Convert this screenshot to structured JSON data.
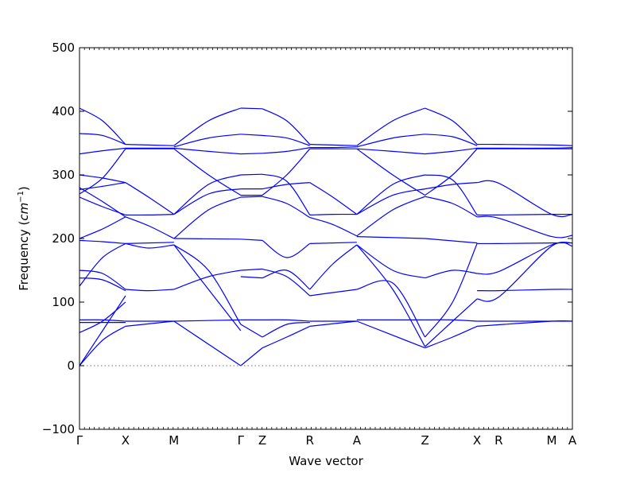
{
  "chart_data": {
    "type": "line",
    "title": "",
    "xlabel": "Wave vector",
    "ylabel": "Frequency",
    "ylabel_unit": "cm",
    "ylabel_unit_exponent": "−1",
    "ylim": [
      -100,
      500
    ],
    "yticks": [
      -100,
      0,
      100,
      200,
      300,
      400,
      500
    ],
    "ytick_labels": [
      "−100",
      "0",
      "100",
      "200",
      "300",
      "400",
      "500"
    ],
    "xlim": [
      0,
      10.7
    ],
    "grid": false,
    "legend": "none",
    "line_color": "#0000ff",
    "zero_line": {
      "y": 0,
      "style": "dotted",
      "color": "#6666aa"
    },
    "high_symmetry_points": [
      {
        "label": "Γ",
        "x": 0.0
      },
      {
        "label": "X",
        "x": 1.0
      },
      {
        "label": "M",
        "x": 2.05
      },
      {
        "label": "Γ",
        "x": 3.5
      },
      {
        "label": "Z",
        "x": 3.97
      },
      {
        "label": "R",
        "x": 5.0
      },
      {
        "label": "A",
        "x": 6.02
      },
      {
        "label": "Z",
        "x": 7.5
      },
      {
        "label": "X",
        "x": 8.63
      },
      {
        "label": "R",
        "x": 9.1
      },
      {
        "label": "M",
        "x": 10.25
      },
      {
        "label": "A",
        "x": 10.7
      }
    ],
    "series": [
      {
        "x": [
          0,
          0.5,
          1.0
        ],
        "y": [
          405,
          385,
          348
        ]
      },
      {
        "x": [
          0,
          0.5,
          1.0
        ],
        "y": [
          365,
          362,
          348
        ]
      },
      {
        "x": [
          0,
          0.5,
          1.0
        ],
        "y": [
          333,
          338,
          342
        ]
      },
      {
        "x": [
          1.0,
          1.5,
          2.05
        ],
        "y": [
          348,
          347,
          346
        ]
      },
      {
        "x": [
          1.0,
          1.5,
          2.05
        ],
        "y": [
          342,
          342,
          342
        ]
      },
      {
        "x": [
          1.0,
          1.5,
          2.05
        ],
        "y": [
          341,
          341,
          341
        ]
      },
      {
        "x": [
          2.05,
          2.8,
          3.5
        ],
        "y": [
          346,
          385,
          405
        ]
      },
      {
        "x": [
          2.05,
          2.8,
          3.5
        ],
        "y": [
          344,
          358,
          364
        ]
      },
      {
        "x": [
          2.05,
          2.8,
          3.5
        ],
        "y": [
          342,
          337,
          333
        ]
      },
      {
        "x": [
          3.5,
          3.97
        ],
        "y": [
          405,
          404
        ]
      },
      {
        "x": [
          3.5,
          3.97
        ],
        "y": [
          364,
          362
        ]
      },
      {
        "x": [
          3.5,
          3.97
        ],
        "y": [
          333,
          334
        ]
      },
      {
        "x": [
          3.97,
          4.5,
          5.0
        ],
        "y": [
          404,
          385,
          348
        ]
      },
      {
        "x": [
          3.97,
          4.5,
          5.0
        ],
        "y": [
          362,
          358,
          346
        ]
      },
      {
        "x": [
          3.97,
          4.5,
          5.0
        ],
        "y": [
          334,
          337,
          343
        ]
      },
      {
        "x": [
          5.0,
          5.5,
          6.02
        ],
        "y": [
          348,
          347,
          346
        ]
      },
      {
        "x": [
          5.0,
          5.5,
          6.02
        ],
        "y": [
          343,
          343,
          344
        ]
      },
      {
        "x": [
          5.0,
          5.5,
          6.02
        ],
        "y": [
          341,
          341,
          341
        ]
      },
      {
        "x": [
          6.02,
          6.8,
          7.5
        ],
        "y": [
          346,
          385,
          405
        ]
      },
      {
        "x": [
          6.02,
          6.8,
          7.5
        ],
        "y": [
          344,
          358,
          364
        ]
      },
      {
        "x": [
          6.02,
          6.8,
          7.5
        ],
        "y": [
          341,
          337,
          333
        ]
      },
      {
        "x": [
          7.5,
          8.1,
          8.63
        ],
        "y": [
          405,
          385,
          348
        ]
      },
      {
        "x": [
          7.5,
          8.1,
          8.63
        ],
        "y": [
          364,
          360,
          346
        ]
      },
      {
        "x": [
          7.5,
          8.1,
          8.63
        ],
        "y": [
          333,
          337,
          342
        ]
      },
      {
        "x": [
          8.63,
          9.1,
          10.25,
          10.7
        ],
        "y": [
          348,
          348,
          347,
          346
        ]
      },
      {
        "x": [
          8.63,
          9.1,
          10.25,
          10.7
        ],
        "y": [
          342,
          342,
          342,
          343
        ]
      },
      {
        "x": [
          8.63,
          9.1,
          10.25,
          10.7
        ],
        "y": [
          341,
          341,
          341,
          341
        ]
      },
      {
        "x": [
          0,
          0.5,
          1.0
        ],
        "y": [
          300,
          295,
          288
        ]
      },
      {
        "x": [
          0,
          0.5,
          1.0
        ],
        "y": [
          277,
          282,
          288
        ]
      },
      {
        "x": [
          0,
          0.5,
          1.0
        ],
        "y": [
          270,
          295,
          341
        ]
      },
      {
        "x": [
          0,
          0.5,
          1.0
        ],
        "y": [
          265,
          250,
          237
        ]
      },
      {
        "x": [
          0,
          0.5,
          1.0
        ],
        "y": [
          280,
          258,
          234
        ]
      },
      {
        "x": [
          1.0,
          1.5,
          2.05
        ],
        "y": [
          288,
          265,
          238
        ]
      },
      {
        "x": [
          1.0,
          1.5,
          2.05
        ],
        "y": [
          237,
          237,
          238
        ]
      },
      {
        "x": [
          1.0,
          1.5,
          2.05
        ],
        "y": [
          234,
          220,
          200
        ]
      },
      {
        "x": [
          2.05,
          2.8,
          3.5
        ],
        "y": [
          238,
          285,
          300
        ]
      },
      {
        "x": [
          2.05,
          2.8,
          3.5
        ],
        "y": [
          238,
          270,
          278
        ]
      },
      {
        "x": [
          2.05,
          2.8,
          3.5
        ],
        "y": [
          200,
          245,
          265
        ]
      },
      {
        "x": [
          2.05,
          2.8,
          3.5
        ],
        "y": [
          341,
          300,
          268
        ]
      },
      {
        "x": [
          3.5,
          3.97
        ],
        "y": [
          300,
          301
        ]
      },
      {
        "x": [
          3.5,
          3.97
        ],
        "y": [
          278,
          278
        ]
      },
      {
        "x": [
          3.5,
          3.97
        ],
        "y": [
          268,
          268
        ]
      },
      {
        "x": [
          3.5,
          3.97
        ],
        "y": [
          265,
          266
        ]
      },
      {
        "x": [
          3.97,
          4.5,
          5.0
        ],
        "y": [
          301,
          290,
          237
        ]
      },
      {
        "x": [
          3.97,
          4.5,
          5.0
        ],
        "y": [
          278,
          285,
          288
        ]
      },
      {
        "x": [
          3.97,
          4.5,
          5.0
        ],
        "y": [
          268,
          300,
          341
        ]
      },
      {
        "x": [
          3.97,
          4.5,
          5.0
        ],
        "y": [
          266,
          255,
          233
        ]
      },
      {
        "x": [
          5.0,
          5.5,
          6.02
        ],
        "y": [
          288,
          265,
          238
        ]
      },
      {
        "x": [
          5.0,
          5.5,
          6.02
        ],
        "y": [
          237,
          238,
          238
        ]
      },
      {
        "x": [
          5.0,
          5.5,
          6.02
        ],
        "y": [
          233,
          222,
          204
        ]
      },
      {
        "x": [
          6.02,
          6.8,
          7.5
        ],
        "y": [
          238,
          285,
          300
        ]
      },
      {
        "x": [
          6.02,
          6.8,
          7.5
        ],
        "y": [
          238,
          268,
          278
        ]
      },
      {
        "x": [
          6.02,
          6.8,
          7.5
        ],
        "y": [
          204,
          245,
          266
        ]
      },
      {
        "x": [
          6.02,
          6.8,
          7.5
        ],
        "y": [
          341,
          300,
          268
        ]
      },
      {
        "x": [
          7.5,
          8.1,
          8.63
        ],
        "y": [
          300,
          292,
          237
        ]
      },
      {
        "x": [
          7.5,
          8.1,
          8.63
        ],
        "y": [
          278,
          285,
          288
        ]
      },
      {
        "x": [
          7.5,
          8.1,
          8.63
        ],
        "y": [
          268,
          300,
          341
        ]
      },
      {
        "x": [
          7.5,
          8.1,
          8.63
        ],
        "y": [
          266,
          255,
          234
        ]
      },
      {
        "x": [
          8.63,
          9.1,
          10.25,
          10.7
        ],
        "y": [
          288,
          287,
          238,
          238
        ]
      },
      {
        "x": [
          8.63,
          9.1,
          10.25,
          10.7
        ],
        "y": [
          237,
          237,
          238,
          238
        ]
      },
      {
        "x": [
          8.63,
          9.1,
          10.25,
          10.7
        ],
        "y": [
          234,
          232,
          203,
          205
        ]
      },
      {
        "x": [
          0,
          0.5,
          1.0
        ],
        "y": [
          200,
          215,
          234
        ]
      },
      {
        "x": [
          0,
          0.5,
          1.0
        ],
        "y": [
          197,
          195,
          192
        ]
      },
      {
        "x": [
          1.0,
          2.05
        ],
        "y": [
          192,
          194
        ]
      },
      {
        "x": [
          2.05,
          3.5
        ],
        "y": [
          200,
          199
        ]
      },
      {
        "x": [
          3.5,
          3.97
        ],
        "y": [
          199,
          197
        ]
      },
      {
        "x": [
          3.97,
          4.5,
          5.0
        ],
        "y": [
          197,
          170,
          192
        ]
      },
      {
        "x": [
          5.0,
          6.02
        ],
        "y": [
          192,
          194
        ]
      },
      {
        "x": [
          6.02,
          7.5
        ],
        "y": [
          203,
          200
        ]
      },
      {
        "x": [
          7.5,
          8.63
        ],
        "y": [
          200,
          193
        ]
      },
      {
        "x": [
          8.63,
          9.1,
          10.25,
          10.7
        ],
        "y": [
          192,
          192,
          193,
          193
        ]
      },
      {
        "x": [
          0,
          0.5,
          1.0
        ],
        "y": [
          150,
          145,
          120
        ]
      },
      {
        "x": [
          0,
          0.5,
          1.0
        ],
        "y": [
          138,
          135,
          118
        ]
      },
      {
        "x": [
          0,
          0.5,
          1.0
        ],
        "y": [
          125,
          170,
          192
        ]
      },
      {
        "x": [
          1.0,
          1.5,
          2.05
        ],
        "y": [
          120,
          118,
          120
        ]
      },
      {
        "x": [
          1.0,
          1.5,
          2.05
        ],
        "y": [
          192,
          185,
          190
        ]
      },
      {
        "x": [
          2.05,
          2.8,
          3.5
        ],
        "y": [
          190,
          150,
          65
        ]
      },
      {
        "x": [
          2.05,
          2.8,
          3.5
        ],
        "y": [
          120,
          140,
          150
        ]
      },
      {
        "x": [
          2.05,
          2.8,
          3.5
        ],
        "y": [
          190,
          120,
          55
        ]
      },
      {
        "x": [
          3.5,
          3.97
        ],
        "y": [
          150,
          152
        ]
      },
      {
        "x": [
          3.5,
          3.97
        ],
        "y": [
          140,
          138
        ]
      },
      {
        "x": [
          3.97,
          4.5,
          5.0
        ],
        "y": [
          152,
          140,
          110
        ]
      },
      {
        "x": [
          3.97,
          4.5,
          5.0
        ],
        "y": [
          138,
          150,
          120
        ]
      },
      {
        "x": [
          5.0,
          5.5,
          6.02
        ],
        "y": [
          110,
          115,
          120
        ]
      },
      {
        "x": [
          5.0,
          5.5,
          6.02
        ],
        "y": [
          120,
          160,
          190
        ]
      },
      {
        "x": [
          6.02,
          6.8,
          7.5
        ],
        "y": [
          190,
          150,
          138
        ]
      },
      {
        "x": [
          6.02,
          6.8,
          7.5
        ],
        "y": [
          120,
          130,
          45
        ]
      },
      {
        "x": [
          6.02,
          6.8,
          7.5
        ],
        "y": [
          190,
          120,
          30
        ]
      },
      {
        "x": [
          7.5,
          8.1,
          8.63
        ],
        "y": [
          138,
          150,
          145
        ]
      },
      {
        "x": [
          7.5,
          8.1,
          8.63
        ],
        "y": [
          45,
          100,
          192
        ]
      },
      {
        "x": [
          7.5,
          8.1,
          8.63
        ],
        "y": [
          30,
          70,
          105
        ]
      },
      {
        "x": [
          8.63,
          9.1,
          10.25,
          10.7
        ],
        "y": [
          145,
          148,
          190,
          193
        ]
      },
      {
        "x": [
          8.63,
          9.1,
          10.25,
          10.7
        ],
        "y": [
          105,
          108,
          188,
          188
        ]
      },
      {
        "x": [
          8.63,
          9.1,
          10.25,
          10.7
        ],
        "y": [
          118,
          118,
          120,
          120
        ]
      },
      {
        "x": [
          0,
          0.5,
          1.0
        ],
        "y": [
          72,
          72,
          70
        ]
      },
      {
        "x": [
          0,
          0.5,
          1.0
        ],
        "y": [
          68,
          68,
          68
        ]
      },
      {
        "x": [
          0,
          0.5,
          1.0
        ],
        "y": [
          52,
          70,
          100
        ]
      },
      {
        "x": [
          0,
          0.5,
          1.0
        ],
        "y": [
          0,
          40,
          62
        ]
      },
      {
        "x": [
          0,
          0.5,
          1.0
        ],
        "y": [
          0,
          55,
          110
        ]
      },
      {
        "x": [
          1.0,
          2.05
        ],
        "y": [
          70,
          70
        ]
      },
      {
        "x": [
          1.0,
          2.05
        ],
        "y": [
          62,
          70
        ]
      },
      {
        "x": [
          2.05,
          3.5
        ],
        "y": [
          70,
          72
        ]
      },
      {
        "x": [
          2.05,
          3.5
        ],
        "y": [
          70,
          0
        ]
      },
      {
        "x": [
          3.5,
          3.97
        ],
        "y": [
          72,
          72
        ]
      },
      {
        "x": [
          3.5,
          3.97
        ],
        "y": [
          0,
          28
        ]
      },
      {
        "x": [
          3.5,
          3.97
        ],
        "y": [
          65,
          45
        ]
      },
      {
        "x": [
          3.97,
          4.5,
          5.0
        ],
        "y": [
          72,
          72,
          70
        ]
      },
      {
        "x": [
          3.97,
          4.5,
          5.0
        ],
        "y": [
          28,
          45,
          62
        ]
      },
      {
        "x": [
          3.97,
          4.5,
          5.0
        ],
        "y": [
          45,
          65,
          68
        ]
      },
      {
        "x": [
          5.0,
          6.02
        ],
        "y": [
          70,
          70
        ]
      },
      {
        "x": [
          5.0,
          6.02
        ],
        "y": [
          62,
          70
        ]
      },
      {
        "x": [
          6.02,
          7.5
        ],
        "y": [
          72,
          72
        ]
      },
      {
        "x": [
          6.02,
          7.5
        ],
        "y": [
          70,
          28
        ]
      },
      {
        "x": [
          7.5,
          8.1,
          8.63
        ],
        "y": [
          72,
          72,
          70
        ]
      },
      {
        "x": [
          7.5,
          8.1,
          8.63
        ],
        "y": [
          28,
          45,
          62
        ]
      },
      {
        "x": [
          8.63,
          10.25,
          10.7
        ],
        "y": [
          70,
          70,
          70
        ]
      },
      {
        "x": [
          8.63,
          10.25,
          10.7
        ],
        "y": [
          62,
          70,
          70
        ]
      }
    ]
  }
}
